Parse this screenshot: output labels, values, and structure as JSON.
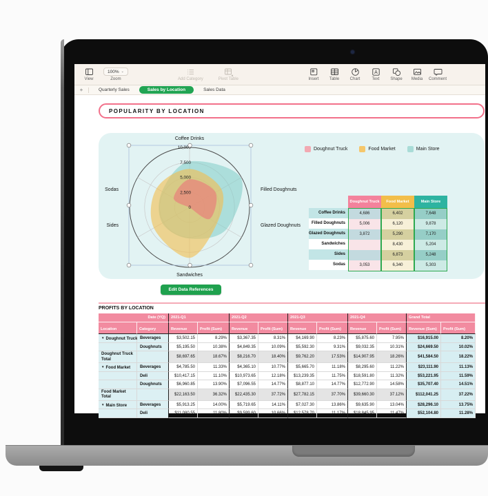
{
  "toolbar": {
    "left": [
      {
        "id": "view",
        "label": "View",
        "icon": "sidebar-icon"
      },
      {
        "id": "zoom",
        "label": "Zoom",
        "value": "100%",
        "chevron": "⌄"
      }
    ],
    "center": [
      {
        "id": "add-category",
        "label": "Add Category",
        "icon": "list-icon",
        "disabled": true
      },
      {
        "id": "pivot-table",
        "label": "Pivot Table",
        "icon": "pivot-icon",
        "disabled": true
      }
    ],
    "right": [
      {
        "id": "insert",
        "label": "Insert",
        "icon": "insert-icon"
      },
      {
        "id": "table",
        "label": "Table",
        "icon": "table-icon"
      },
      {
        "id": "chart",
        "label": "Chart",
        "icon": "chart-icon"
      },
      {
        "id": "text",
        "label": "Text",
        "icon": "text-icon"
      },
      {
        "id": "shape",
        "label": "Shape",
        "icon": "shape-icon"
      },
      {
        "id": "media",
        "label": "Media",
        "icon": "media-icon"
      },
      {
        "id": "comment",
        "label": "Comment",
        "icon": "comment-icon"
      }
    ]
  },
  "tabs": {
    "add_label": "+",
    "items": [
      {
        "label": "Quarterly Sales",
        "active": false
      },
      {
        "label": "Sales by Location",
        "active": true
      },
      {
        "label": "Sales Data",
        "active": false
      }
    ]
  },
  "colors": {
    "accent_green": "#1fa14e",
    "tab_green": "#21a453",
    "banner_pink": "#f2708a",
    "divider_pink": "#f5aab6",
    "table_header_pink": "#f28ba0",
    "mini_border_green": "#2da94f"
  },
  "banner_title": "POPULARITY BY LOCATION",
  "edit_button_label": "Edit Data References",
  "chart_data": {
    "type": "radar",
    "categories": [
      "Coffee Drinks",
      "Filled Doughnuts",
      "Glazed Doughnuts",
      "Sandwiches",
      "Sides",
      "Sodas"
    ],
    "series": [
      {
        "name": "Doughnut Truck",
        "legend_color": "#f2a9b2",
        "fill_color": "#e8827c",
        "fill_opacity": 0.72,
        "values": [
          4686,
          5006,
          3872,
          null,
          null,
          3053
        ]
      },
      {
        "name": "Food Market",
        "legend_color": "#f5c76b",
        "fill_color": "#f2be52",
        "fill_opacity": 0.62,
        "values": [
          6402,
          6120,
          5290,
          8430,
          6873,
          6340
        ]
      },
      {
        "name": "Main Store",
        "legend_color": "#a9dcd7",
        "fill_color": "#7fccc6",
        "fill_opacity": 0.55,
        "values": [
          7648,
          9878,
          7170,
          5204,
          5248,
          5303
        ]
      }
    ],
    "radial_ticks": [
      "0",
      "2,500",
      "5,000",
      "7,500",
      "10,000"
    ],
    "rmax": 10000,
    "grid": true,
    "legend_position": "top-right",
    "selected": true
  },
  "mini_table": {
    "columns": [
      {
        "name": "Doughnut Truck",
        "header_color": "#f3829c",
        "cell_odd": "#c3dadf",
        "cell_even": "#f9e4e8"
      },
      {
        "name": "Food Market",
        "header_color": "#f2be4a",
        "cell_odd": "#d5d0a0",
        "cell_even": "#f7f0d8"
      },
      {
        "name": "Main Store",
        "header_color": "#2eb3a1",
        "cell_odd": "#96cec7",
        "cell_even": "#cdeae5"
      }
    ],
    "label_odd_bg": "#c2e5e6",
    "label_even_bg": "#ffffff",
    "rows": [
      {
        "label": "Coffee Drinks",
        "values": [
          "4,686",
          "6,402",
          "7,648"
        ]
      },
      {
        "label": "Filled Doughnuts",
        "values": [
          "5,006",
          "6,120",
          "9,878"
        ]
      },
      {
        "label": "Glazed Doughnuts",
        "values": [
          "3,872",
          "5,290",
          "7,170"
        ]
      },
      {
        "label": "Sandwiches",
        "values": [
          "",
          "8,430",
          "5,204"
        ]
      },
      {
        "label": "Sides",
        "values": [
          "",
          "6,873",
          "5,248"
        ]
      },
      {
        "label": "Sodas",
        "values": [
          "3,053",
          "6,340",
          "5,303"
        ]
      }
    ]
  },
  "profits_table": {
    "title": "PROFITS BY LOCATION",
    "corner_label": "Date (YQ)",
    "row_axis_labels": [
      "Location",
      "Category"
    ],
    "groups": [
      "2021-Q1",
      "2021-Q2",
      "2021-Q3",
      "2021-Q4",
      "Grand Total"
    ],
    "measure_labels": [
      "Revenue (Sum)",
      "Profit (Sum)"
    ],
    "rows": [
      {
        "kind": "first",
        "location": "Doughnut Truck",
        "category": "Beverages",
        "values": [
          "$3,502.15",
          "8.29%",
          "$3,367.35",
          "8.31%",
          "$4,169.90",
          "8.23%",
          "$5,875.60",
          "7.95%",
          "$16,915.00",
          "8.20%"
        ]
      },
      {
        "kind": "sub",
        "location": "",
        "category": "Doughnuts",
        "values": [
          "$5,195.50",
          "10.38%",
          "$4,849.35",
          "10.09%",
          "$5,592.30",
          "9.31%",
          "$9,032.35",
          "10.31%",
          "$24,669.50",
          "10.02%"
        ]
      },
      {
        "kind": "total",
        "location": "Doughnut Truck Total",
        "category": "",
        "values": [
          "$8,697.65",
          "18.67%",
          "$8,216.70",
          "18.40%",
          "$9,762.20",
          "17.53%",
          "$14,907.95",
          "18.26%",
          "$41,584.50",
          "18.22%"
        ]
      },
      {
        "kind": "first",
        "location": "Food Market",
        "category": "Beverages",
        "values": [
          "$4,785.50",
          "11.33%",
          "$4,365.10",
          "10.77%",
          "$5,665.70",
          "11.18%",
          "$8,295.60",
          "11.22%",
          "$23,111.90",
          "11.13%"
        ]
      },
      {
        "kind": "sub",
        "location": "",
        "category": "Deli",
        "values": [
          "$10,417.15",
          "11.10%",
          "$10,973.65",
          "12.18%",
          "$13,239.35",
          "11.75%",
          "$18,591.80",
          "11.32%",
          "$53,221.95",
          "11.59%"
        ]
      },
      {
        "kind": "sub",
        "location": "",
        "category": "Doughnuts",
        "values": [
          "$6,960.85",
          "13.90%",
          "$7,096.55",
          "14.77%",
          "$8,877.10",
          "14.77%",
          "$12,772.90",
          "14.58%",
          "$35,707.40",
          "14.51%"
        ]
      },
      {
        "kind": "total",
        "location": "Food Market Total",
        "category": "",
        "values": [
          "$22,163.50",
          "36.32%",
          "$22,435.30",
          "37.72%",
          "$27,782.15",
          "37.70%",
          "$39,660.30",
          "37.12%",
          "$112,041.25",
          "37.22%"
        ]
      },
      {
        "kind": "first",
        "location": "Main Store",
        "category": "Beverages",
        "values": [
          "$5,913.25",
          "14.00%",
          "$5,719.65",
          "14.11%",
          "$7,027.30",
          "13.86%",
          "$9,635.90",
          "13.04%",
          "$28,296.10",
          "13.75%"
        ]
      },
      {
        "kind": "sub",
        "location": "",
        "category": "Deli",
        "values": [
          "$11,080.55",
          "11.80%",
          "$9,599.60",
          "10.66%",
          "$12,578.70",
          "11.17%",
          "$18,845.95",
          "11.47%",
          "$52,104.80",
          "11.28%"
        ]
      }
    ]
  }
}
